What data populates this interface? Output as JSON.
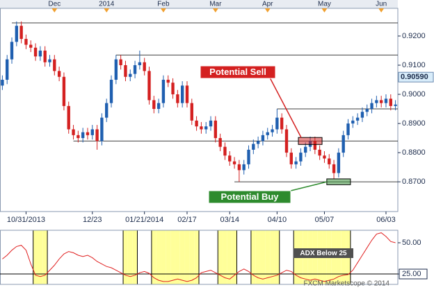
{
  "chart_data": [
    {
      "type": "candlestick",
      "categories": [
        null,
        null,
        null,
        null,
        null,
        "10/31/2013",
        null,
        null,
        null,
        null,
        null,
        null,
        null,
        null,
        null,
        null,
        null,
        null,
        null,
        "12/23",
        null,
        null,
        null,
        null,
        null,
        null,
        null,
        null,
        null,
        null,
        "01/21/2014",
        null,
        null,
        null,
        null,
        null,
        null,
        null,
        null,
        "02/17",
        null,
        null,
        null,
        null,
        null,
        null,
        null,
        null,
        "03/14",
        null,
        null,
        null,
        null,
        null,
        null,
        null,
        null,
        null,
        "04/10",
        null,
        null,
        null,
        null,
        null,
        null,
        null,
        null,
        null,
        "05/07",
        null,
        null,
        null,
        null,
        null,
        null,
        null,
        null,
        null,
        null,
        null,
        null,
        "06/03",
        null,
        null
      ],
      "top_categories": [
        null,
        null,
        null,
        null,
        null,
        null,
        null,
        null,
        null,
        null,
        null,
        "Dec",
        null,
        null,
        null,
        null,
        null,
        null,
        null,
        null,
        null,
        null,
        "2014",
        null,
        null,
        null,
        null,
        null,
        null,
        null,
        null,
        null,
        null,
        null,
        "Feb",
        null,
        null,
        null,
        null,
        null,
        null,
        null,
        null,
        null,
        null,
        "Mar",
        null,
        null,
        null,
        null,
        null,
        null,
        null,
        null,
        null,
        null,
        "Apr",
        null,
        null,
        null,
        null,
        null,
        null,
        null,
        null,
        null,
        null,
        null,
        "May",
        null,
        null,
        null,
        null,
        null,
        null,
        null,
        null,
        null,
        null,
        null,
        "Jun",
        null,
        null,
        null
      ],
      "open": [
        0.903,
        0.905,
        0.912,
        0.918,
        0.9235,
        0.919,
        0.917,
        0.916,
        0.913,
        0.915,
        0.911,
        0.912,
        0.908,
        0.906,
        0.896,
        0.888,
        0.886,
        0.885,
        0.887,
        0.886,
        0.888,
        0.884,
        0.892,
        0.897,
        0.905,
        0.912,
        0.91,
        0.906,
        0.907,
        0.91,
        0.911,
        0.908,
        0.898,
        0.895,
        0.897,
        0.905,
        0.904,
        0.9,
        0.897,
        0.903,
        0.897,
        0.891,
        0.889,
        0.888,
        0.889,
        0.891,
        0.885,
        0.882,
        0.879,
        0.877,
        0.876,
        0.874,
        0.876,
        0.881,
        0.883,
        0.884,
        0.886,
        0.887,
        0.888,
        0.892,
        0.888,
        0.88,
        0.876,
        0.877,
        0.88,
        0.882,
        0.884,
        0.881,
        0.879,
        0.878,
        0.876,
        0.873,
        0.88,
        0.886,
        0.89,
        0.891,
        0.892,
        0.894,
        0.895,
        0.897,
        0.898,
        0.897,
        0.8985,
        0.896
      ],
      "close": [
        0.905,
        0.912,
        0.918,
        0.9235,
        0.919,
        0.917,
        0.916,
        0.913,
        0.915,
        0.911,
        0.912,
        0.908,
        0.906,
        0.896,
        0.888,
        0.886,
        0.885,
        0.887,
        0.886,
        0.888,
        0.884,
        0.892,
        0.897,
        0.905,
        0.912,
        0.91,
        0.906,
        0.907,
        0.91,
        0.911,
        0.908,
        0.898,
        0.895,
        0.897,
        0.905,
        0.904,
        0.9,
        0.897,
        0.903,
        0.897,
        0.891,
        0.889,
        0.888,
        0.889,
        0.891,
        0.885,
        0.882,
        0.879,
        0.877,
        0.876,
        0.874,
        0.876,
        0.881,
        0.883,
        0.884,
        0.886,
        0.887,
        0.888,
        0.892,
        0.888,
        0.88,
        0.876,
        0.877,
        0.88,
        0.882,
        0.884,
        0.881,
        0.879,
        0.878,
        0.876,
        0.873,
        0.88,
        0.886,
        0.89,
        0.891,
        0.892,
        0.894,
        0.895,
        0.897,
        0.898,
        0.897,
        0.8985,
        0.896,
        0.8965
      ],
      "high": [
        0.9065,
        0.9135,
        0.9195,
        0.925,
        0.925,
        0.9205,
        0.9185,
        0.9175,
        0.9165,
        0.9165,
        0.9135,
        0.9135,
        0.9095,
        0.9075,
        0.8975,
        0.8895,
        0.8875,
        0.8885,
        0.8885,
        0.8895,
        0.8895,
        0.8935,
        0.8985,
        0.9065,
        0.9135,
        0.9135,
        0.9115,
        0.9085,
        0.9115,
        0.915,
        0.9125,
        0.9095,
        0.8995,
        0.8985,
        0.9065,
        0.9065,
        0.9055,
        0.9015,
        0.9045,
        0.9045,
        0.8985,
        0.8925,
        0.8905,
        0.8905,
        0.8925,
        0.8925,
        0.8865,
        0.8835,
        0.8805,
        0.8785,
        0.8775,
        0.8775,
        0.8825,
        0.8845,
        0.8855,
        0.8875,
        0.8885,
        0.8895,
        0.895,
        0.8935,
        0.8895,
        0.8815,
        0.8785,
        0.8815,
        0.8835,
        0.8855,
        0.8855,
        0.8825,
        0.8805,
        0.8795,
        0.8775,
        0.8815,
        0.8875,
        0.8915,
        0.8925,
        0.8935,
        0.8955,
        0.8965,
        0.8985,
        0.8995,
        0.8995,
        0.9,
        0.9,
        0.898
      ],
      "low": [
        0.9015,
        0.9035,
        0.9105,
        0.9165,
        0.9175,
        0.9155,
        0.9145,
        0.9115,
        0.9115,
        0.9095,
        0.9095,
        0.9065,
        0.9045,
        0.8945,
        0.8865,
        0.8845,
        0.8835,
        0.8835,
        0.8845,
        0.8845,
        0.881,
        0.8825,
        0.8905,
        0.8955,
        0.9035,
        0.9085,
        0.9045,
        0.9045,
        0.9055,
        0.9085,
        0.9065,
        0.8965,
        0.8935,
        0.8935,
        0.8955,
        0.9025,
        0.8985,
        0.8955,
        0.8955,
        0.8955,
        0.8895,
        0.8875,
        0.8865,
        0.8865,
        0.8875,
        0.8835,
        0.8805,
        0.8775,
        0.8755,
        0.8745,
        0.87,
        0.8725,
        0.8745,
        0.8795,
        0.8815,
        0.8825,
        0.8845,
        0.8855,
        0.8865,
        0.8865,
        0.8785,
        0.8745,
        0.8745,
        0.8755,
        0.8785,
        0.8805,
        0.8795,
        0.8775,
        0.8765,
        0.8745,
        0.871,
        0.8715,
        0.8785,
        0.8845,
        0.8885,
        0.8895,
        0.8905,
        0.8925,
        0.8935,
        0.8955,
        0.8955,
        0.8955,
        0.8945,
        0.8945
      ],
      "up_color": "#1f5fb0",
      "down_color": "#d42020",
      "ylim": [
        0.8598,
        0.9295
      ],
      "yticks": [
        {
          "value": 0.87,
          "label": "0.8700"
        },
        {
          "value": 0.88,
          "label": "0.8800"
        },
        {
          "value": 0.89,
          "label": "0.8900"
        },
        {
          "value": 0.9,
          "label": "0.9000"
        },
        {
          "value": 0.91,
          "label": "0.9100"
        },
        {
          "value": 0.92,
          "label": "0.9200"
        }
      ],
      "current_price": {
        "value": 0.9059,
        "label": "0.90590"
      },
      "levels": [
        {
          "value": 0.9245,
          "from": 2
        },
        {
          "value": 0.9135,
          "from": 24
        },
        {
          "value": 0.895,
          "from": 58
        },
        {
          "value": 0.884,
          "from": 15
        },
        {
          "value": 0.87,
          "from": 49
        }
      ],
      "annotations": [
        {
          "text": "Potential Sell",
          "color": "#d42020",
          "from": 63,
          "to": 67,
          "top": 0.8852,
          "bottom": 0.8828
        },
        {
          "text": "Potential Buy",
          "color": "#2e8b2e",
          "from": 69,
          "to": 73,
          "top": 0.871,
          "bottom": 0.869
        }
      ]
    },
    {
      "type": "line",
      "values": [
        37,
        40,
        44,
        47,
        48,
        44,
        33,
        24,
        23,
        24,
        28,
        32,
        37,
        41,
        43,
        42,
        40,
        39,
        40,
        38,
        35,
        33,
        31,
        30,
        28,
        26,
        24,
        23,
        24,
        26,
        27,
        25.5,
        22,
        20,
        19,
        19,
        20,
        21,
        20,
        19,
        20,
        22,
        26,
        27,
        28,
        26,
        24,
        22,
        21,
        24,
        27,
        29,
        27,
        24,
        22,
        21,
        22,
        23,
        24,
        26,
        28,
        27,
        24,
        22,
        21,
        20,
        21,
        20,
        19,
        20,
        21,
        23,
        24,
        24.5,
        28,
        34,
        40,
        46,
        52,
        57,
        58,
        55,
        51,
        50
      ],
      "color": "#e02020",
      "ylim": [
        16.7,
        60
      ],
      "yticks": [
        {
          "value": 25,
          "label": "25.00"
        },
        {
          "value": 50,
          "label": "50.00"
        }
      ],
      "highlight_below": 25,
      "highlight_color": "#ffff99",
      "annotation": "ADX Below 25",
      "source": "FXCM Marketscope © 2014"
    }
  ]
}
